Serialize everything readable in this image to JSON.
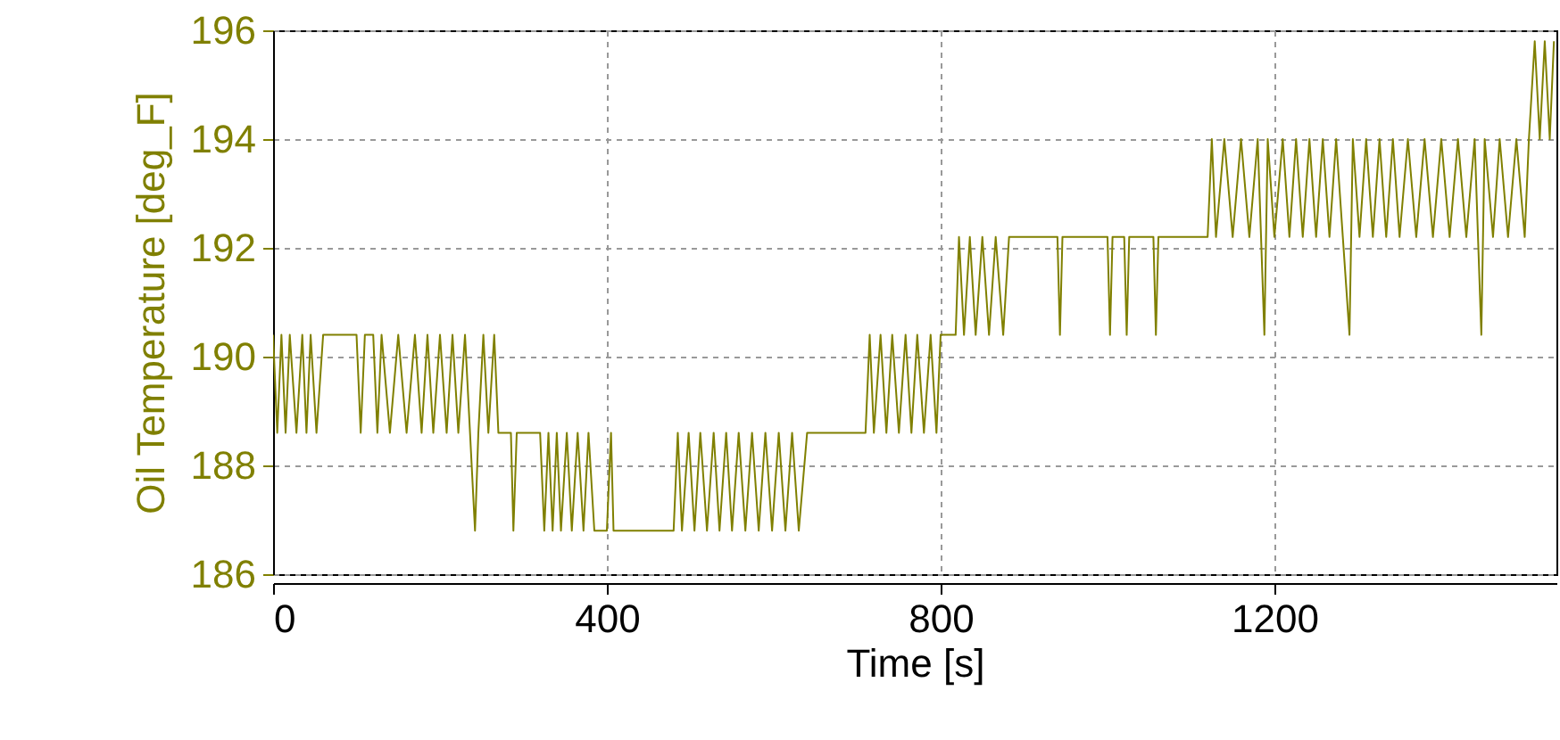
{
  "chart_data": {
    "type": "line",
    "xlabel": "Time [s]",
    "ylabel": "Oil Temperature [deg_F]",
    "color": "#808000",
    "grid": true,
    "xlim": [
      0,
      1538
    ],
    "xticks": [
      0,
      400,
      800,
      1200
    ],
    "ylim": [
      186,
      196
    ],
    "yticks": [
      186,
      188,
      190,
      192,
      194,
      196
    ],
    "x": [
      0,
      5,
      10,
      15,
      20,
      28,
      35,
      40,
      45,
      52,
      60,
      100,
      105,
      110,
      120,
      125,
      130,
      140,
      150,
      160,
      170,
      178,
      185,
      192,
      200,
      208,
      215,
      222,
      230,
      236,
      242,
      246,
      252,
      258,
      265,
      270,
      285,
      288,
      292,
      320,
      325,
      330,
      335,
      340,
      345,
      352,
      358,
      365,
      372,
      378,
      385,
      400,
      405,
      408,
      480,
      485,
      490,
      498,
      505,
      512,
      520,
      528,
      535,
      543,
      550,
      558,
      566,
      574,
      582,
      590,
      598,
      606,
      614,
      622,
      630,
      640,
      710,
      715,
      720,
      728,
      735,
      742,
      750,
      758,
      765,
      772,
      780,
      788,
      795,
      800,
      818,
      822,
      828,
      835,
      842,
      850,
      858,
      866,
      875,
      882,
      900,
      940,
      943,
      946,
      1000,
      1003,
      1006,
      1020,
      1023,
      1026,
      1055,
      1058,
      1061,
      1120,
      1125,
      1130,
      1140,
      1150,
      1160,
      1170,
      1180,
      1188,
      1192,
      1200,
      1210,
      1218,
      1226,
      1234,
      1242,
      1250,
      1258,
      1266,
      1274,
      1282,
      1290,
      1294,
      1302,
      1310,
      1318,
      1326,
      1334,
      1342,
      1350,
      1360,
      1370,
      1380,
      1390,
      1400,
      1410,
      1420,
      1430,
      1440,
      1448,
      1452,
      1462,
      1470,
      1480,
      1490,
      1500,
      1505,
      1512,
      1518,
      1524,
      1530,
      1535
    ],
    "values": [
      190.4,
      188.6,
      190.4,
      188.6,
      190.4,
      188.6,
      190.4,
      188.6,
      190.4,
      188.6,
      190.4,
      190.4,
      188.6,
      190.4,
      190.4,
      188.6,
      190.4,
      188.6,
      190.4,
      188.6,
      190.4,
      188.6,
      190.4,
      188.6,
      190.4,
      188.6,
      190.4,
      188.6,
      190.4,
      188.6,
      186.8,
      188.6,
      190.4,
      188.6,
      190.4,
      188.6,
      188.6,
      186.8,
      188.6,
      188.6,
      186.8,
      188.6,
      186.8,
      188.6,
      186.8,
      188.6,
      186.8,
      188.6,
      186.8,
      188.6,
      186.8,
      186.8,
      188.6,
      186.8,
      186.8,
      188.6,
      186.8,
      188.6,
      186.8,
      188.6,
      186.8,
      188.6,
      186.8,
      188.6,
      186.8,
      188.6,
      186.8,
      188.6,
      186.8,
      188.6,
      186.8,
      188.6,
      186.8,
      188.6,
      186.8,
      188.6,
      188.6,
      190.4,
      188.6,
      190.4,
      188.6,
      190.4,
      188.6,
      190.4,
      188.6,
      190.4,
      188.6,
      190.4,
      188.6,
      190.4,
      190.4,
      192.2,
      190.4,
      192.2,
      190.4,
      192.2,
      190.4,
      192.2,
      190.4,
      192.2,
      192.2,
      192.2,
      190.4,
      192.2,
      192.2,
      190.4,
      192.2,
      192.2,
      190.4,
      192.2,
      192.2,
      190.4,
      192.2,
      192.2,
      194.0,
      192.2,
      194.0,
      192.2,
      194.0,
      192.2,
      194.0,
      190.4,
      194.0,
      192.2,
      194.0,
      192.2,
      194.0,
      192.2,
      194.0,
      192.2,
      194.0,
      192.2,
      194.0,
      192.2,
      190.4,
      194.0,
      192.2,
      194.0,
      192.2,
      194.0,
      192.2,
      194.0,
      192.2,
      194.0,
      192.2,
      194.0,
      192.2,
      194.0,
      192.2,
      194.0,
      192.2,
      194.0,
      190.4,
      194.0,
      192.2,
      194.0,
      192.2,
      194.0,
      192.2,
      194.0,
      195.8,
      194.0,
      195.8,
      194.0,
      195.8
    ]
  }
}
